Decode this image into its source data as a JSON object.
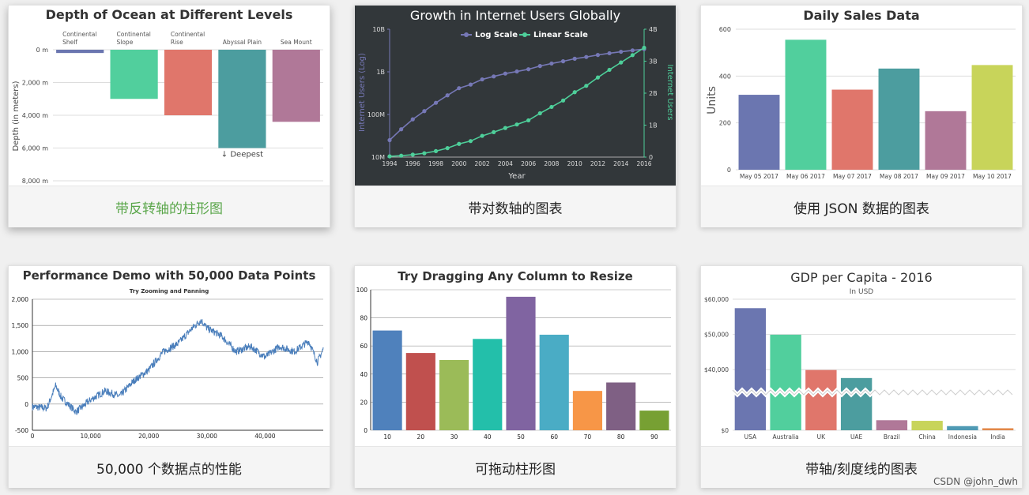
{
  "cards": [
    {
      "caption": "带反转轴的柱形图"
    },
    {
      "caption": "带对数轴的图表"
    },
    {
      "caption": "使用 JSON 数据的图表"
    },
    {
      "caption": "50,000 个数据点的性能"
    },
    {
      "caption": "可拖动柱形图"
    },
    {
      "caption": "带轴/刻度线的图表"
    }
  ],
  "watermark": "CSDN @john_dwh",
  "chart_data": [
    {
      "type": "bar",
      "title": "Depth of Ocean at Different Levels",
      "ylabel": "Depth (in meters)",
      "categories": [
        [
          "Continental",
          "Shelf"
        ],
        [
          "Continental",
          "Slope"
        ],
        [
          "Continental",
          "Rise"
        ],
        [
          "Abyssal Plain"
        ],
        [
          "Sea Mount"
        ]
      ],
      "values": [
        200,
        3000,
        4000,
        6000,
        4400
      ],
      "colors": [
        "#6b76b0",
        "#51cf9d",
        "#e0766b",
        "#4c9d9f",
        "#b07898"
      ],
      "ylim": [
        0,
        8000
      ],
      "y_reversed": true,
      "yticks": [
        "0 m",
        "2,000 m",
        "4,000 m",
        "6,000 m",
        "8,000 m"
      ],
      "annotation": "↓ Deepest"
    },
    {
      "type": "line",
      "title": "Growth in Internet Users Globally",
      "xlabel": "Year",
      "ylabel": "Internet Users (Log)",
      "y2label": "Internet Users",
      "x": [
        1994,
        1995,
        1996,
        1997,
        1998,
        1999,
        2000,
        2001,
        2002,
        2003,
        2004,
        2005,
        2006,
        2007,
        2008,
        2009,
        2010,
        2011,
        2012,
        2013,
        2014,
        2015,
        2016
      ],
      "xticks": [
        "1994",
        "1996",
        "1998",
        "2000",
        "2002",
        "2004",
        "2006",
        "2008",
        "2010",
        "2012",
        "2014",
        "2016"
      ],
      "yticks_log": [
        "10M",
        "100M",
        "1B",
        "10B"
      ],
      "yticks_linear": [
        "0",
        "1B",
        "2B",
        "3B",
        "4B"
      ],
      "legend": [
        "Log Scale",
        "Linear Scale"
      ],
      "series": [
        {
          "name": "Log Scale",
          "values": [
            25000000,
            45000000,
            77000000,
            120000000,
            188000000,
            281000000,
            414000000,
            502000000,
            665000000,
            780000000,
            910000000,
            1020000000,
            1150000000,
            1370000000,
            1570000000,
            1770000000,
            2030000000,
            2230000000,
            2490000000,
            2730000000,
            2960000000,
            3190000000,
            3420000000
          ]
        },
        {
          "name": "Linear Scale",
          "values": [
            25000000,
            45000000,
            77000000,
            120000000,
            188000000,
            281000000,
            414000000,
            502000000,
            665000000,
            780000000,
            910000000,
            1020000000,
            1150000000,
            1370000000,
            1570000000,
            1770000000,
            2030000000,
            2230000000,
            2490000000,
            2730000000,
            2960000000,
            3190000000,
            3420000000
          ]
        }
      ],
      "colors": [
        "#7678b6",
        "#4ecf9a"
      ]
    },
    {
      "type": "bar",
      "title": "Daily Sales Data",
      "ylabel": "Units",
      "categories": [
        "May 05 2017",
        "May 06 2017",
        "May 07 2017",
        "May 08 2017",
        "May 09 2017",
        "May 10 2017"
      ],
      "values": [
        320,
        555,
        342,
        432,
        250,
        447
      ],
      "colors": [
        "#6b76b0",
        "#51cf9d",
        "#e0766b",
        "#4c9d9f",
        "#b07898",
        "#c8d45a"
      ],
      "ylim": [
        0,
        600
      ],
      "yticks": [
        "0",
        "200",
        "400",
        "600"
      ]
    },
    {
      "type": "line",
      "title": "Performance Demo with 50,000 Data Points",
      "subtitle": "Try Zooming and Panning",
      "xlim": [
        0,
        50000
      ],
      "ylim": [
        -500,
        2000
      ],
      "xticks": [
        "0",
        "10,000",
        "20,000",
        "30,000",
        "40,000"
      ],
      "yticks": [
        "-500",
        "0",
        "500",
        "1,000",
        "1,500",
        "2,000"
      ],
      "x": [
        0,
        2500,
        4000,
        5000,
        7500,
        10000,
        12500,
        15000,
        17500,
        20000,
        22500,
        25000,
        27500,
        29000,
        30000,
        32500,
        35000,
        37500,
        40000,
        42500,
        45000,
        47500,
        49000,
        50000
      ],
      "values": [
        -50,
        -80,
        350,
        120,
        -150,
        80,
        250,
        150,
        450,
        650,
        1000,
        1150,
        1450,
        1600,
        1450,
        1300,
        1000,
        1100,
        900,
        1100,
        1000,
        1200,
        800,
        1050
      ],
      "color": "#4a7ebb"
    },
    {
      "type": "bar",
      "title": "Try Dragging Any Column to Resize",
      "categories": [
        "10",
        "20",
        "30",
        "40",
        "50",
        "60",
        "70",
        "80",
        "90"
      ],
      "values": [
        71,
        55,
        50,
        65,
        95,
        68,
        28,
        34,
        14
      ],
      "colors": [
        "#4f81bc",
        "#c0504e",
        "#9bbb58",
        "#23bfaa",
        "#8064a1",
        "#4aacc5",
        "#f79647",
        "#7f6084",
        "#77a033"
      ],
      "ylim": [
        0,
        100
      ],
      "yticks": [
        "0",
        "20",
        "40",
        "60",
        "80",
        "100"
      ]
    },
    {
      "type": "bar",
      "title": "GDP per Capita - 2016",
      "subtitle": "In USD",
      "categories": [
        "USA",
        "Australia",
        "UK",
        "UAE",
        "Brazil",
        "China",
        "Indonesia",
        "India"
      ],
      "values": [
        57466,
        49927,
        39899,
        37622,
        8649,
        8123,
        3570,
        1723
      ],
      "colors": [
        "#6b76b0",
        "#51cf9d",
        "#e0766b",
        "#4c9d9f",
        "#b07898",
        "#c8d45a",
        "#4f9ab4",
        "#e2884a"
      ],
      "yticks": [
        "$0",
        "$40,000",
        "$50,000",
        "$60,000"
      ],
      "axis_break": [
        0,
        34000
      ]
    }
  ]
}
